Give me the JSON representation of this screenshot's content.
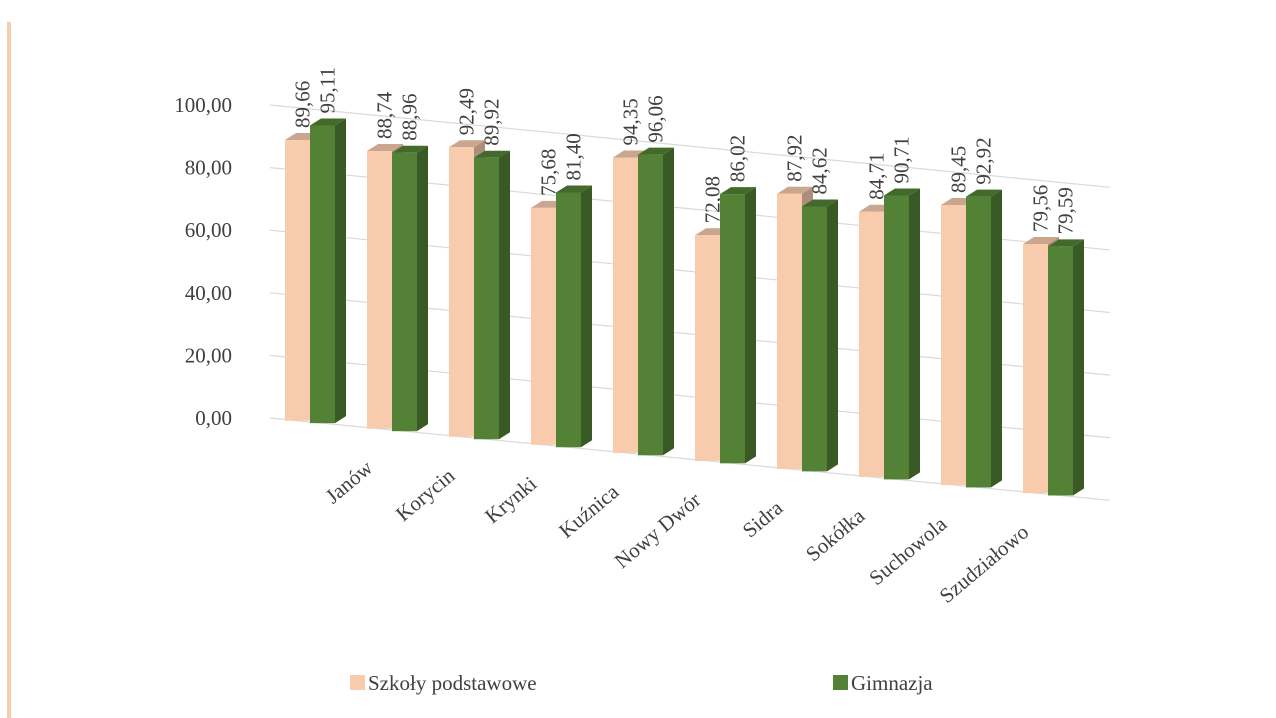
{
  "chart_data": {
    "type": "bar3d",
    "categories": [
      null,
      "Janów",
      "Korycin",
      "Krynki",
      "Kuźnica",
      "Nowy Dwór",
      "Sidra",
      "Sokółka",
      "Suchowola",
      "Szudziałowo"
    ],
    "series": [
      {
        "name": "Szkoły podstawowe",
        "color": "#f8cbad",
        "values": [
          89.66,
          88.74,
          92.49,
          75.68,
          94.35,
          72.08,
          87.92,
          84.71,
          89.45,
          79.56
        ],
        "value_labels": [
          "89,66",
          "88,74",
          "92,49",
          "75,68",
          "94,35",
          "72,08",
          "87,92",
          "84,71",
          "89,45",
          "79,56"
        ]
      },
      {
        "name": "Gimnazja",
        "color": "#538135",
        "values": [
          95.11,
          88.96,
          89.92,
          81.4,
          96.06,
          86.02,
          84.62,
          90.71,
          92.92,
          79.59
        ],
        "value_labels": [
          "95,11",
          "88,96",
          "89,92",
          "81,40",
          "96,06",
          "86,02",
          "84,62",
          "90,71",
          "92,92",
          "79,59"
        ]
      }
    ],
    "ylim": [
      0,
      100
    ],
    "yticks": [
      {
        "value": 0,
        "label": "0,00"
      },
      {
        "value": 20,
        "label": "20,00"
      },
      {
        "value": 40,
        "label": "40,00"
      },
      {
        "value": 60,
        "label": "60,00"
      },
      {
        "value": 80,
        "label": "80,00"
      },
      {
        "value": 100,
        "label": "100,00"
      }
    ],
    "grid": true,
    "legend": "bottom"
  }
}
